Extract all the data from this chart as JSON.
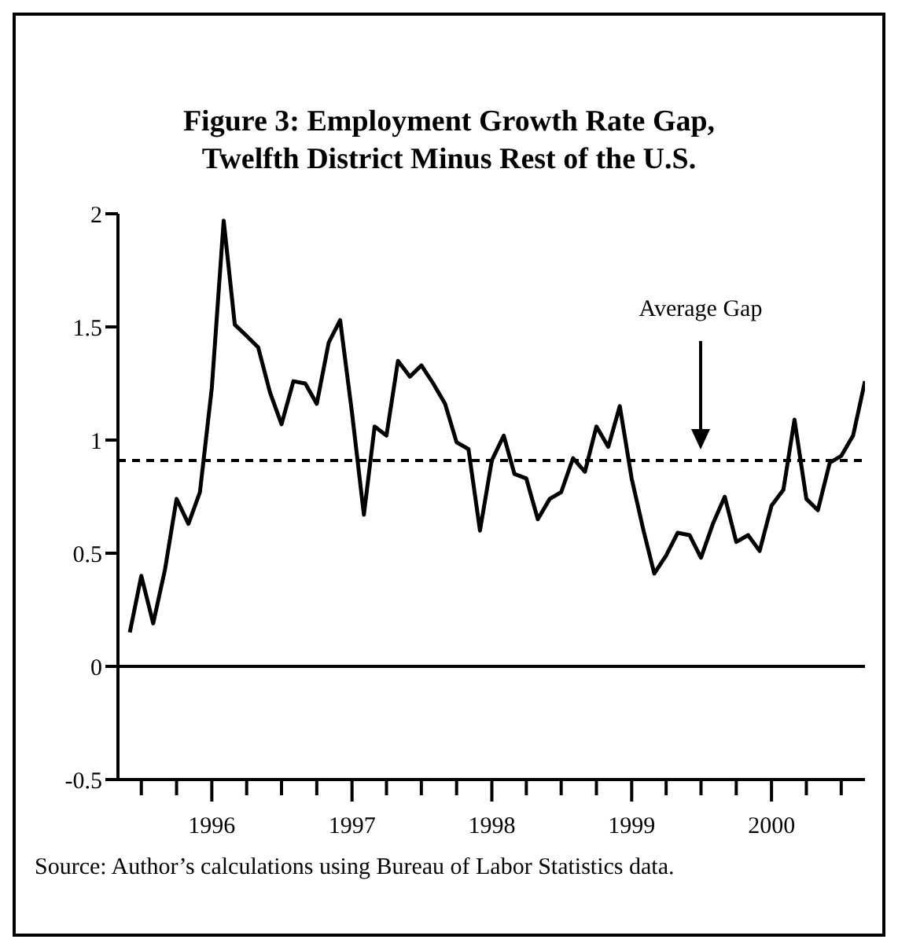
{
  "chart_data": {
    "type": "line",
    "title": "Figure 3: Employment Growth Rate Gap,\nTwelfth District Minus Rest of the U.S.",
    "x": [
      "1995-06",
      "1995-07",
      "1995-08",
      "1995-09",
      "1995-10",
      "1995-11",
      "1995-12",
      "1996-01",
      "1996-02",
      "1996-03",
      "1996-04",
      "1996-05",
      "1996-06",
      "1996-07",
      "1996-08",
      "1996-09",
      "1996-10",
      "1996-11",
      "1996-12",
      "1997-01",
      "1997-02",
      "1997-03",
      "1997-04",
      "1997-05",
      "1997-06",
      "1997-07",
      "1997-08",
      "1997-09",
      "1997-10",
      "1997-11",
      "1997-12",
      "1998-01",
      "1998-02",
      "1998-03",
      "1998-04",
      "1998-05",
      "1998-06",
      "1998-07",
      "1998-08",
      "1998-09",
      "1998-10",
      "1998-11",
      "1998-12",
      "1999-01",
      "1999-02",
      "1999-03",
      "1999-04",
      "1999-05",
      "1999-06",
      "1999-07",
      "1999-08",
      "1999-09",
      "1999-10",
      "1999-11",
      "1999-12",
      "2000-01",
      "2000-02",
      "2000-03",
      "2000-04",
      "2000-05",
      "2000-06",
      "2000-07",
      "2000-08",
      "2000-09"
    ],
    "series": [
      {
        "color": "#000000",
        "values": [
          0.15,
          0.4,
          0.19,
          0.43,
          0.74,
          0.63,
          0.77,
          1.23,
          1.97,
          1.51,
          1.46,
          1.41,
          1.21,
          1.07,
          1.26,
          1.25,
          1.16,
          1.43,
          1.53,
          1.12,
          0.67,
          1.06,
          1.02,
          1.35,
          1.28,
          1.33,
          1.25,
          1.16,
          0.99,
          0.96,
          0.6,
          0.91,
          1.02,
          0.85,
          0.83,
          0.65,
          0.74,
          0.77,
          0.92,
          0.86,
          1.06,
          0.97,
          1.15,
          0.83,
          0.6,
          0.41,
          0.49,
          0.59,
          0.58,
          0.48,
          0.63,
          0.75,
          0.55,
          0.58,
          0.51,
          0.71,
          0.78,
          1.09,
          0.74,
          0.69,
          0.9,
          0.93,
          1.02,
          1.26
        ]
      }
    ],
    "xlim": [
      "1995-05",
      "2000-09"
    ],
    "xticks": [
      {
        "value": "1995-07",
        "label": null
      },
      {
        "value": "1995-10",
        "label": null
      },
      {
        "value": "1996-01",
        "label": "1996"
      },
      {
        "value": "1996-04",
        "label": null
      },
      {
        "value": "1996-07",
        "label": null
      },
      {
        "value": "1996-10",
        "label": null
      },
      {
        "value": "1997-01",
        "label": "1997"
      },
      {
        "value": "1997-04",
        "label": null
      },
      {
        "value": "1997-07",
        "label": null
      },
      {
        "value": "1997-10",
        "label": null
      },
      {
        "value": "1998-01",
        "label": "1998"
      },
      {
        "value": "1998-04",
        "label": null
      },
      {
        "value": "1998-07",
        "label": null
      },
      {
        "value": "1998-10",
        "label": null
      },
      {
        "value": "1999-01",
        "label": "1999"
      },
      {
        "value": "1999-04",
        "label": null
      },
      {
        "value": "1999-07",
        "label": null
      },
      {
        "value": "1999-10",
        "label": null
      },
      {
        "value": "2000-01",
        "label": "2000"
      },
      {
        "value": "2000-04",
        "label": null
      },
      {
        "value": "2000-07",
        "label": null
      }
    ],
    "ylim": [
      -0.5,
      2
    ],
    "yticks": [
      -0.5,
      0,
      0.5,
      1,
      1.5,
      2
    ],
    "ref_lines": [
      {
        "axis": "y",
        "value": 0.91,
        "line_style": "dashed",
        "color": "#000000",
        "label": "Average Gap"
      },
      {
        "axis": "y",
        "value": 0,
        "line_style": "solid",
        "color": "#000000"
      }
    ],
    "annotations": [
      "Source: Author’s calculations using Bureau of Labor Statistics data."
    ],
    "marker": "none",
    "line_style": "solid"
  }
}
